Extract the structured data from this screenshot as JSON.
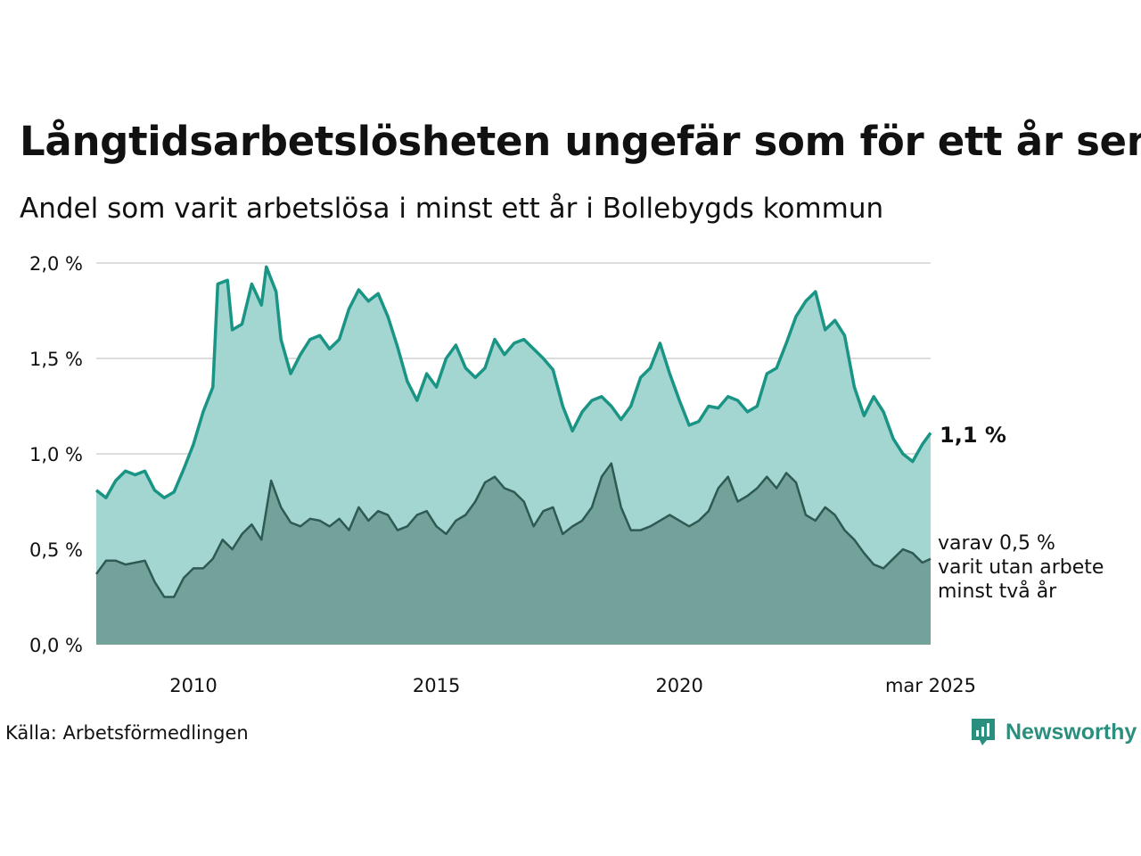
{
  "title": "Långtidsarbetslösheten ungefär som för ett år sen",
  "subtitle": "Andel som varit arbetslösa i minst ett år i Bollebygds kommun",
  "source": "Källa: Arbetsförmedlingen",
  "brand": {
    "name": "Newsworthy",
    "icon": "newsworthy-logo-icon"
  },
  "colors": {
    "main_line": "#1a9484",
    "main_fill": "#a3d6d0",
    "sub_line": "#2e5a53",
    "sub_fill": "#73a29b",
    "grid": "#dddddd",
    "brand": "#2a8f7e"
  },
  "labels": {
    "main_value": "1,1 %",
    "sub_line1": "varav 0,5 %",
    "sub_line2": "varit utan arbete",
    "sub_line3": "minst två år"
  },
  "chart_data": {
    "type": "area",
    "title": "Långtidsarbetslösheten ungefär som för ett år sen",
    "subtitle": "Andel som varit arbetslösa i minst ett år i Bollebygds kommun",
    "xlabel": "",
    "ylabel": "",
    "x_ticks": [
      "2010",
      "2015",
      "2020",
      "mar 2025"
    ],
    "x_tick_positions": [
      2010.0,
      2015.0,
      2020.0,
      2025.17
    ],
    "y_ticks": [
      "0,0 %",
      "0,5 %",
      "1,0 %",
      "1,5 %",
      "2,0 %"
    ],
    "y_tick_values": [
      0,
      0.5,
      1.0,
      1.5,
      2.0
    ],
    "ylim": [
      0,
      2.0
    ],
    "xlim": [
      2008.0,
      2025.17
    ],
    "grid": true,
    "legend": "direct labels at right end",
    "series": [
      {
        "points": [
          [
            2008.0,
            0.81
          ],
          [
            2008.2,
            0.77
          ],
          [
            2008.4,
            0.86
          ],
          [
            2008.6,
            0.91
          ],
          [
            2008.8,
            0.89
          ],
          [
            2009.0,
            0.91
          ],
          [
            2009.2,
            0.81
          ],
          [
            2009.4,
            0.77
          ],
          [
            2009.6,
            0.8
          ],
          [
            2009.8,
            0.92
          ],
          [
            2010.0,
            1.05
          ],
          [
            2010.2,
            1.22
          ],
          [
            2010.4,
            1.35
          ],
          [
            2010.5,
            1.89
          ],
          [
            2010.7,
            1.91
          ],
          [
            2010.8,
            1.65
          ],
          [
            2011.0,
            1.68
          ],
          [
            2011.2,
            1.89
          ],
          [
            2011.4,
            1.78
          ],
          [
            2011.5,
            1.98
          ],
          [
            2011.7,
            1.85
          ],
          [
            2011.8,
            1.6
          ],
          [
            2012.0,
            1.42
          ],
          [
            2012.2,
            1.52
          ],
          [
            2012.4,
            1.6
          ],
          [
            2012.6,
            1.62
          ],
          [
            2012.8,
            1.55
          ],
          [
            2013.0,
            1.6
          ],
          [
            2013.2,
            1.76
          ],
          [
            2013.4,
            1.86
          ],
          [
            2013.6,
            1.8
          ],
          [
            2013.8,
            1.84
          ],
          [
            2014.0,
            1.72
          ],
          [
            2014.2,
            1.56
          ],
          [
            2014.4,
            1.38
          ],
          [
            2014.6,
            1.28
          ],
          [
            2014.8,
            1.42
          ],
          [
            2015.0,
            1.35
          ],
          [
            2015.2,
            1.5
          ],
          [
            2015.4,
            1.57
          ],
          [
            2015.6,
            1.45
          ],
          [
            2015.8,
            1.4
          ],
          [
            2016.0,
            1.45
          ],
          [
            2016.2,
            1.6
          ],
          [
            2016.4,
            1.52
          ],
          [
            2016.6,
            1.58
          ],
          [
            2016.8,
            1.6
          ],
          [
            2017.0,
            1.55
          ],
          [
            2017.2,
            1.5
          ],
          [
            2017.4,
            1.44
          ],
          [
            2017.6,
            1.25
          ],
          [
            2017.8,
            1.12
          ],
          [
            2018.0,
            1.22
          ],
          [
            2018.2,
            1.28
          ],
          [
            2018.4,
            1.3
          ],
          [
            2018.6,
            1.25
          ],
          [
            2018.8,
            1.18
          ],
          [
            2019.0,
            1.25
          ],
          [
            2019.2,
            1.4
          ],
          [
            2019.4,
            1.45
          ],
          [
            2019.6,
            1.58
          ],
          [
            2019.8,
            1.42
          ],
          [
            2020.0,
            1.28
          ],
          [
            2020.2,
            1.15
          ],
          [
            2020.4,
            1.17
          ],
          [
            2020.6,
            1.25
          ],
          [
            2020.8,
            1.24
          ],
          [
            2021.0,
            1.3
          ],
          [
            2021.2,
            1.28
          ],
          [
            2021.4,
            1.22
          ],
          [
            2021.6,
            1.25
          ],
          [
            2021.8,
            1.42
          ],
          [
            2022.0,
            1.45
          ],
          [
            2022.2,
            1.58
          ],
          [
            2022.4,
            1.72
          ],
          [
            2022.6,
            1.8
          ],
          [
            2022.8,
            1.85
          ],
          [
            2023.0,
            1.65
          ],
          [
            2023.2,
            1.7
          ],
          [
            2023.4,
            1.62
          ],
          [
            2023.6,
            1.35
          ],
          [
            2023.8,
            1.2
          ],
          [
            2024.0,
            1.3
          ],
          [
            2024.2,
            1.22
          ],
          [
            2024.4,
            1.08
          ],
          [
            2024.6,
            1.0
          ],
          [
            2024.8,
            0.96
          ],
          [
            2025.0,
            1.05
          ],
          [
            2025.17,
            1.11
          ]
        ]
      },
      {
        "points": [
          [
            2008.0,
            0.37
          ],
          [
            2008.2,
            0.44
          ],
          [
            2008.4,
            0.44
          ],
          [
            2008.6,
            0.42
          ],
          [
            2008.8,
            0.43
          ],
          [
            2009.0,
            0.44
          ],
          [
            2009.2,
            0.33
          ],
          [
            2009.4,
            0.25
          ],
          [
            2009.6,
            0.25
          ],
          [
            2009.8,
            0.35
          ],
          [
            2010.0,
            0.4
          ],
          [
            2010.2,
            0.4
          ],
          [
            2010.4,
            0.45
          ],
          [
            2010.6,
            0.55
          ],
          [
            2010.8,
            0.5
          ],
          [
            2011.0,
            0.58
          ],
          [
            2011.2,
            0.63
          ],
          [
            2011.4,
            0.55
          ],
          [
            2011.6,
            0.86
          ],
          [
            2011.8,
            0.72
          ],
          [
            2012.0,
            0.64
          ],
          [
            2012.2,
            0.62
          ],
          [
            2012.4,
            0.66
          ],
          [
            2012.6,
            0.65
          ],
          [
            2012.8,
            0.62
          ],
          [
            2013.0,
            0.66
          ],
          [
            2013.2,
            0.6
          ],
          [
            2013.4,
            0.72
          ],
          [
            2013.6,
            0.65
          ],
          [
            2013.8,
            0.7
          ],
          [
            2014.0,
            0.68
          ],
          [
            2014.2,
            0.6
          ],
          [
            2014.4,
            0.62
          ],
          [
            2014.6,
            0.68
          ],
          [
            2014.8,
            0.7
          ],
          [
            2015.0,
            0.62
          ],
          [
            2015.2,
            0.58
          ],
          [
            2015.4,
            0.65
          ],
          [
            2015.6,
            0.68
          ],
          [
            2015.8,
            0.75
          ],
          [
            2016.0,
            0.85
          ],
          [
            2016.2,
            0.88
          ],
          [
            2016.4,
            0.82
          ],
          [
            2016.6,
            0.8
          ],
          [
            2016.8,
            0.75
          ],
          [
            2017.0,
            0.62
          ],
          [
            2017.2,
            0.7
          ],
          [
            2017.4,
            0.72
          ],
          [
            2017.6,
            0.58
          ],
          [
            2017.8,
            0.62
          ],
          [
            2018.0,
            0.65
          ],
          [
            2018.2,
            0.72
          ],
          [
            2018.4,
            0.88
          ],
          [
            2018.6,
            0.95
          ],
          [
            2018.8,
            0.72
          ],
          [
            2019.0,
            0.6
          ],
          [
            2019.2,
            0.6
          ],
          [
            2019.4,
            0.62
          ],
          [
            2019.6,
            0.65
          ],
          [
            2019.8,
            0.68
          ],
          [
            2020.0,
            0.65
          ],
          [
            2020.2,
            0.62
          ],
          [
            2020.4,
            0.65
          ],
          [
            2020.6,
            0.7
          ],
          [
            2020.8,
            0.82
          ],
          [
            2021.0,
            0.88
          ],
          [
            2021.2,
            0.75
          ],
          [
            2021.4,
            0.78
          ],
          [
            2021.6,
            0.82
          ],
          [
            2021.8,
            0.88
          ],
          [
            2022.0,
            0.82
          ],
          [
            2022.2,
            0.9
          ],
          [
            2022.4,
            0.85
          ],
          [
            2022.6,
            0.68
          ],
          [
            2022.8,
            0.65
          ],
          [
            2023.0,
            0.72
          ],
          [
            2023.2,
            0.68
          ],
          [
            2023.4,
            0.6
          ],
          [
            2023.6,
            0.55
          ],
          [
            2023.8,
            0.48
          ],
          [
            2024.0,
            0.42
          ],
          [
            2024.2,
            0.4
          ],
          [
            2024.4,
            0.45
          ],
          [
            2024.6,
            0.5
          ],
          [
            2024.8,
            0.48
          ],
          [
            2025.0,
            0.43
          ],
          [
            2025.17,
            0.45
          ]
        ]
      }
    ]
  }
}
